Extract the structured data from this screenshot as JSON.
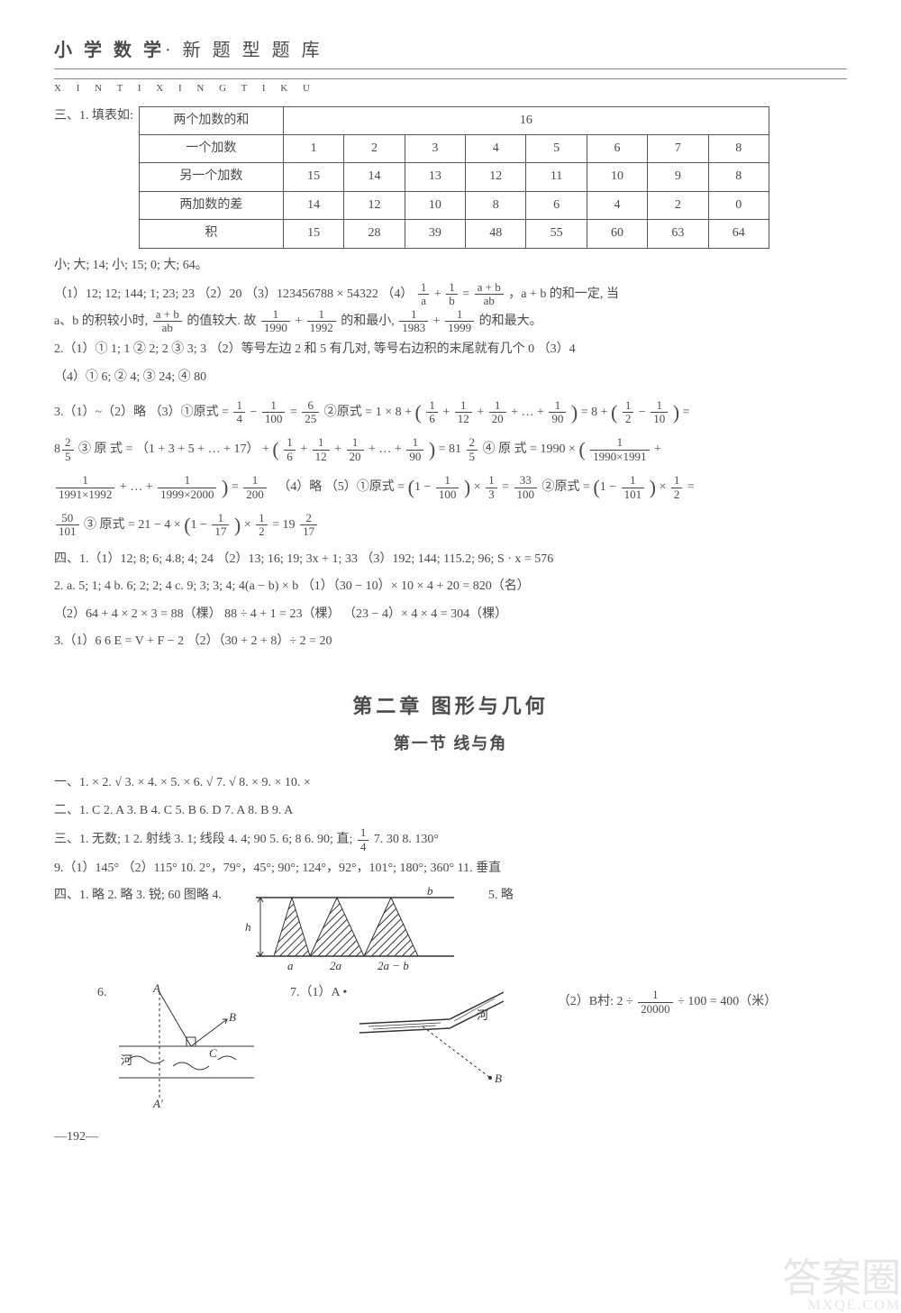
{
  "header": {
    "title_bold": "小 学 数 学",
    "title_rest": "· 新 题 型 题 库",
    "pinyin": "X I N T I X I N G T I K U"
  },
  "section3_label": "三、1. 填表如:",
  "table": {
    "columns_count": 9,
    "rows": [
      {
        "head": "两个加数的和",
        "cells": [
          "16"
        ],
        "colspan": 8
      },
      {
        "head": "一个加数",
        "cells": [
          "1",
          "2",
          "3",
          "4",
          "5",
          "6",
          "7",
          "8"
        ]
      },
      {
        "head": "另一个加数",
        "cells": [
          "15",
          "14",
          "13",
          "12",
          "11",
          "10",
          "9",
          "8"
        ]
      },
      {
        "head": "两加数的差",
        "cells": [
          "14",
          "12",
          "10",
          "8",
          "6",
          "4",
          "2",
          "0"
        ]
      },
      {
        "head": "积",
        "cells": [
          "15",
          "28",
          "39",
          "48",
          "55",
          "60",
          "63",
          "64"
        ]
      }
    ]
  },
  "summary_line": "小;  大;  14;  小;  15;  0;  大;  64。",
  "p1_a": "（1）12;  12;  144;  1;  23;  23   （2）20   （3）123456788 × 54322   （4）",
  "p1_b": "，a + b 的和一定,  当",
  "p1_c": "a、b 的积较小时,",
  "p1_d": "的值较大. 故",
  "p1_e": "的和最小,",
  "p1_f": "的和最大。",
  "p2": "2.（1）① 1;  1   ② 2;  2   ③ 3;  3   （2）等号左边 2 和 5 有几对,  等号右边积的末尾就有几个 0   （3）4",
  "p2b": "（4）① 6;  ② 4;  ③ 24;  ④ 80",
  "p3a": "3.（1）~（2）略   （3）①原式 =",
  "p3b": "   ②原式 = 1 × 8 +",
  "p3c": "= 8 +",
  "p3d": "=",
  "p3e": "   ③ 原 式 = （1 + 3 + 5 + … + 17）  +",
  "p3f": "= 81",
  "p3g": "   ④ 原 式 = 1990 ×",
  "p3h": "（4）略   （5）①原式 =",
  "p3i": "   ②原式 =",
  "p3j": "   ③ 原式 = 21 − 4 ×",
  "p3k": "= 19",
  "section4": {
    "l1": "四、1.（1）12;  8;  6;  4.8;  4;  24   （2）13;  16;  19;  3x + 1;  33   （3）192;  144;  115.2;  96;  S · x = 576",
    "l2": "2.  a. 5;  1;  4    b. 6;  2;  2;  4    c. 9;  3;  3;  4;   4(a − b) × b   （1）（30 − 10）× 10 × 4 + 20 = 820（名）",
    "l3": "（2）64 + 4 × 2 × 3 = 88（棵）   88 ÷ 4 + 1 = 23（棵）  （23 − 4）× 4 × 4 = 304（棵）",
    "l4": "3.（1）6   6    E = V + F − 2   （2）（30 + 2 + 8）÷ 2 = 20"
  },
  "chapter": "第二章   图形与几何",
  "section_title": "第一节   线与角",
  "ch2": {
    "l1": "一、1. ×    2. √    3. ×    4. ×    5. ×    6. √    7. √    8. ×    9. ×    10. ×",
    "l2": "二、1. C    2. A    3. B    4. C    5. B    6. D    7. A    8. B    9. A",
    "l3a": "三、1. 无数; 1    2. 射线    3. 1; 线段    4. 4; 90    5. 6; 8    6. 90; 直;",
    "l3b": "    7. 30    8. 130°",
    "l4": "9.（1）145°   （2）115°     10. 2°，79°，45°;  90°;  124°，92°，101°;  180°;  360°     11. 垂直",
    "l5a": "四、1. 略    2. 略    3. 锐;  60   图略          4.",
    "l5b": "5. 略",
    "l6": "6.",
    "l7a": "7.（1）A",
    "l7b": "（2）B村:   2 ÷",
    "l7c": "÷ 100 = 400（米）"
  },
  "fig4": {
    "a": "a",
    "two_a": "2a",
    "two_a_b": "2a − b",
    "b": "b",
    "h": "h"
  },
  "fig6": {
    "A": "A",
    "B": "B",
    "C": "C",
    "Aprime": "A′",
    "river": "河"
  },
  "fig7": {
    "A": "A",
    "B": "B",
    "river": "河"
  },
  "frac": {
    "one_a": {
      "n": "1",
      "d": "a"
    },
    "one_b": {
      "n": "1",
      "d": "b"
    },
    "apb_ab": {
      "n": "a + b",
      "d": "ab"
    },
    "apb_ab2": {
      "n": "a + b",
      "d": "ab"
    },
    "f1990": {
      "n": "1",
      "d": "1990"
    },
    "f1992": {
      "n": "1",
      "d": "1992"
    },
    "f1983": {
      "n": "1",
      "d": "1983"
    },
    "f1999": {
      "n": "1",
      "d": "1999"
    },
    "q1_4": {
      "n": "1",
      "d": "4"
    },
    "q1_100": {
      "n": "1",
      "d": "100"
    },
    "q6_25": {
      "n": "6",
      "d": "25"
    },
    "q1_6": {
      "n": "1",
      "d": "6"
    },
    "q1_12": {
      "n": "1",
      "d": "12"
    },
    "q1_20": {
      "n": "1",
      "d": "20"
    },
    "q1_90": {
      "n": "1",
      "d": "90"
    },
    "q1_2": {
      "n": "1",
      "d": "2"
    },
    "q1_10": {
      "n": "1",
      "d": "10"
    },
    "e8_25": {
      "n": "2",
      "d": "5"
    },
    "e81_25": {
      "n": "2",
      "d": "5"
    },
    "f1990_91": {
      "n": "1",
      "d": "1990×1991"
    },
    "f1991_92": {
      "n": "1",
      "d": "1991×1992"
    },
    "f1999_00": {
      "n": "1",
      "d": "1999×2000"
    },
    "q1_200": {
      "n": "1",
      "d": "200"
    },
    "q1_3": {
      "n": "1",
      "d": "3"
    },
    "q33_100": {
      "n": "33",
      "d": "100"
    },
    "q1_101": {
      "n": "1",
      "d": "101"
    },
    "q50_101": {
      "n": "50",
      "d": "101"
    },
    "q1_17": {
      "n": "1",
      "d": "17"
    },
    "q2_17": {
      "n": "2",
      "d": "17"
    },
    "q1_4b": {
      "n": "1",
      "d": "4"
    },
    "q1_20000": {
      "n": "1",
      "d": "20000"
    }
  },
  "pagefoot": "—192—",
  "watermark": {
    "big": "答案圈",
    "site": "MXQE.COM"
  },
  "colors": {
    "text": "#4a4a4a",
    "border": "#555555",
    "fig_fill": "#ffffff",
    "fig_hatch": "#333333"
  }
}
